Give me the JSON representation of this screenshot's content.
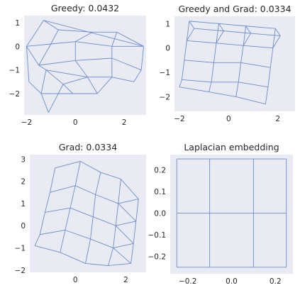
{
  "colors": {
    "background": "#eaeaf2",
    "edge": "#6a8ed0",
    "text": "#262626"
  },
  "chart_data": [
    {
      "type": "graph",
      "title": "Greedy: 0.0432",
      "xlim": [
        -2.1,
        2.9
      ],
      "ylim": [
        -2.9,
        1.3
      ],
      "xticks": [
        -2,
        0,
        2
      ],
      "yticks": [
        1,
        0,
        -1,
        -2
      ],
      "nodes": [
        [
          -1.3,
          1.1
        ],
        [
          -0.7,
          0.7
        ],
        [
          0.7,
          0.6
        ],
        [
          1.7,
          0.6
        ],
        [
          -2.0,
          0.0
        ],
        [
          -1.0,
          0.1
        ],
        [
          0.0,
          0.2
        ],
        [
          1.5,
          0.0
        ],
        [
          2.8,
          0.0
        ],
        [
          -1.5,
          -0.8
        ],
        [
          0.0,
          -0.6
        ],
        [
          1.5,
          -0.5
        ],
        [
          2.7,
          -1.0
        ],
        [
          -1.2,
          -1.0
        ],
        [
          -0.5,
          -1.6
        ],
        [
          0.5,
          -1.3
        ],
        [
          1.5,
          -1.3
        ],
        [
          2.4,
          -1.5
        ],
        [
          -1.9,
          -1.5
        ],
        [
          -1.4,
          -2.0
        ],
        [
          -0.1,
          -2.0
        ],
        [
          0.9,
          -2.0
        ],
        [
          -1.1,
          -2.8
        ]
      ],
      "edges": [
        [
          0,
          1
        ],
        [
          1,
          2
        ],
        [
          2,
          3
        ],
        [
          3,
          8
        ],
        [
          0,
          4
        ],
        [
          1,
          5
        ],
        [
          2,
          6
        ],
        [
          3,
          7
        ],
        [
          4,
          5
        ],
        [
          5,
          6
        ],
        [
          6,
          7
        ],
        [
          7,
          8
        ],
        [
          4,
          9
        ],
        [
          5,
          9
        ],
        [
          6,
          10
        ],
        [
          7,
          11
        ],
        [
          8,
          12
        ],
        [
          9,
          10
        ],
        [
          10,
          11
        ],
        [
          11,
          12
        ],
        [
          9,
          13
        ],
        [
          10,
          15
        ],
        [
          11,
          16
        ],
        [
          12,
          17
        ],
        [
          13,
          15
        ],
        [
          15,
          16
        ],
        [
          16,
          17
        ],
        [
          13,
          14
        ],
        [
          14,
          15
        ],
        [
          4,
          18
        ],
        [
          18,
          19
        ],
        [
          19,
          20
        ],
        [
          20,
          21
        ],
        [
          21,
          16
        ],
        [
          13,
          19
        ],
        [
          14,
          20
        ],
        [
          15,
          21
        ],
        [
          19,
          22
        ],
        [
          22,
          14
        ],
        [
          0,
          8
        ]
      ]
    },
    {
      "type": "graph",
      "title": "Greedy and Grad: 0.0334",
      "xlim": [
        -2.2,
        2.7
      ],
      "ylim": [
        -2.6,
        1.3
      ],
      "xticks": [
        -2,
        0,
        2
      ],
      "yticks": [
        1,
        0,
        -1,
        -2
      ],
      "nodes": [
        [
          -1.6,
          1.1
        ],
        [
          -0.4,
          1.0
        ],
        [
          0.7,
          0.9
        ],
        [
          1.9,
          0.8
        ],
        [
          -1.7,
          0.3
        ],
        [
          -0.5,
          0.2
        ],
        [
          0.6,
          0.1
        ],
        [
          1.8,
          0.0
        ],
        [
          -1.8,
          -0.5
        ],
        [
          -0.6,
          -0.6
        ],
        [
          0.5,
          -0.6
        ],
        [
          1.7,
          -0.8
        ],
        [
          -1.9,
          -1.3
        ],
        [
          -0.7,
          -1.4
        ],
        [
          0.4,
          -1.4
        ],
        [
          1.6,
          -1.6
        ],
        [
          -2.0,
          -1.6
        ],
        [
          -0.8,
          -1.8
        ],
        [
          0.3,
          -2.0
        ],
        [
          1.5,
          -2.3
        ],
        [
          -1.4,
          0.8
        ],
        [
          -0.2,
          0.7
        ],
        [
          0.9,
          0.6
        ],
        [
          2.1,
          0.5
        ]
      ],
      "edges": [
        [
          0,
          1
        ],
        [
          1,
          2
        ],
        [
          2,
          3
        ],
        [
          4,
          5
        ],
        [
          5,
          6
        ],
        [
          6,
          7
        ],
        [
          8,
          9
        ],
        [
          9,
          10
        ],
        [
          10,
          11
        ],
        [
          12,
          13
        ],
        [
          13,
          14
        ],
        [
          14,
          15
        ],
        [
          16,
          17
        ],
        [
          17,
          18
        ],
        [
          18,
          19
        ],
        [
          0,
          4
        ],
        [
          4,
          8
        ],
        [
          8,
          12
        ],
        [
          12,
          16
        ],
        [
          1,
          5
        ],
        [
          5,
          9
        ],
        [
          9,
          13
        ],
        [
          13,
          17
        ],
        [
          2,
          6
        ],
        [
          6,
          10
        ],
        [
          10,
          14
        ],
        [
          14,
          18
        ],
        [
          3,
          7
        ],
        [
          7,
          11
        ],
        [
          11,
          15
        ],
        [
          15,
          19
        ],
        [
          20,
          21
        ],
        [
          21,
          22
        ],
        [
          22,
          23
        ],
        [
          0,
          20
        ],
        [
          1,
          21
        ],
        [
          2,
          22
        ],
        [
          3,
          23
        ],
        [
          23,
          7
        ],
        [
          4,
          20
        ],
        [
          5,
          21
        ],
        [
          6,
          22
        ]
      ]
    },
    {
      "type": "graph",
      "title": "Grad: 0.0334",
      "xlim": [
        -1.8,
        2.8
      ],
      "ylim": [
        -2.1,
        3.2
      ],
      "xticks": [
        0,
        2
      ],
      "yticks": [
        3,
        2,
        1,
        0,
        -1,
        -2
      ],
      "nodes": [
        [
          -0.8,
          2.6
        ],
        [
          0.2,
          2.9
        ],
        [
          1.0,
          2.4
        ],
        [
          1.8,
          2.1
        ],
        [
          -1.0,
          1.5
        ],
        [
          0.0,
          1.8
        ],
        [
          0.8,
          1.4
        ],
        [
          1.7,
          1.0
        ],
        [
          -1.2,
          0.6
        ],
        [
          -0.2,
          0.8
        ],
        [
          0.7,
          0.4
        ],
        [
          1.6,
          0.0
        ],
        [
          -1.4,
          -0.4
        ],
        [
          -0.4,
          -0.2
        ],
        [
          0.6,
          -0.6
        ],
        [
          1.5,
          -1.0
        ],
        [
          -1.6,
          -0.9
        ],
        [
          -0.6,
          -1.2
        ],
        [
          0.4,
          -1.7
        ],
        [
          1.3,
          -1.8
        ],
        [
          2.5,
          1.2
        ],
        [
          2.4,
          0.2
        ],
        [
          2.3,
          -0.8
        ],
        [
          2.2,
          -1.7
        ]
      ],
      "edges": [
        [
          0,
          1
        ],
        [
          1,
          2
        ],
        [
          2,
          3
        ],
        [
          4,
          5
        ],
        [
          5,
          6
        ],
        [
          6,
          7
        ],
        [
          8,
          9
        ],
        [
          9,
          10
        ],
        [
          10,
          11
        ],
        [
          12,
          13
        ],
        [
          13,
          14
        ],
        [
          14,
          15
        ],
        [
          16,
          17
        ],
        [
          17,
          18
        ],
        [
          18,
          19
        ],
        [
          0,
          4
        ],
        [
          4,
          8
        ],
        [
          8,
          12
        ],
        [
          12,
          16
        ],
        [
          1,
          5
        ],
        [
          5,
          9
        ],
        [
          9,
          13
        ],
        [
          13,
          17
        ],
        [
          2,
          6
        ],
        [
          6,
          10
        ],
        [
          10,
          14
        ],
        [
          14,
          18
        ],
        [
          3,
          7
        ],
        [
          7,
          11
        ],
        [
          11,
          15
        ],
        [
          15,
          19
        ],
        [
          3,
          20
        ],
        [
          7,
          20
        ],
        [
          7,
          21
        ],
        [
          11,
          21
        ],
        [
          11,
          22
        ],
        [
          15,
          22
        ],
        [
          15,
          23
        ],
        [
          19,
          23
        ],
        [
          20,
          21
        ],
        [
          21,
          22
        ],
        [
          22,
          23
        ]
      ]
    },
    {
      "type": "graph",
      "title": "Laplacian embedding",
      "xlim": [
        -0.28,
        0.28
      ],
      "ylim": [
        -0.28,
        0.27
      ],
      "xticks": [
        -0.2,
        0.0,
        0.2
      ],
      "yticks": [
        0.2,
        0.1,
        0.0,
        -0.1,
        -0.2
      ],
      "tick_labels_x": [
        "−0.2",
        "0.0",
        "0.2"
      ],
      "tick_labels_y": [
        "0.2",
        "0.1",
        "0.0",
        "−0.1",
        "−0.2"
      ],
      "nodes": [
        [
          -0.25,
          0.25
        ],
        [
          -0.1,
          0.25
        ],
        [
          0.1,
          0.25
        ],
        [
          0.25,
          0.25
        ],
        [
          -0.25,
          0.0
        ],
        [
          -0.1,
          0.0
        ],
        [
          0.1,
          0.0
        ],
        [
          0.25,
          0.0
        ],
        [
          -0.25,
          -0.25
        ],
        [
          -0.1,
          -0.25
        ],
        [
          0.1,
          -0.25
        ],
        [
          0.25,
          -0.25
        ]
      ],
      "edges": [
        [
          0,
          1
        ],
        [
          1,
          2
        ],
        [
          2,
          3
        ],
        [
          4,
          5
        ],
        [
          5,
          6
        ],
        [
          6,
          7
        ],
        [
          8,
          9
        ],
        [
          9,
          10
        ],
        [
          10,
          11
        ],
        [
          0,
          4
        ],
        [
          4,
          8
        ],
        [
          1,
          5
        ],
        [
          5,
          9
        ],
        [
          2,
          6
        ],
        [
          6,
          10
        ],
        [
          3,
          7
        ],
        [
          7,
          11
        ]
      ]
    }
  ]
}
